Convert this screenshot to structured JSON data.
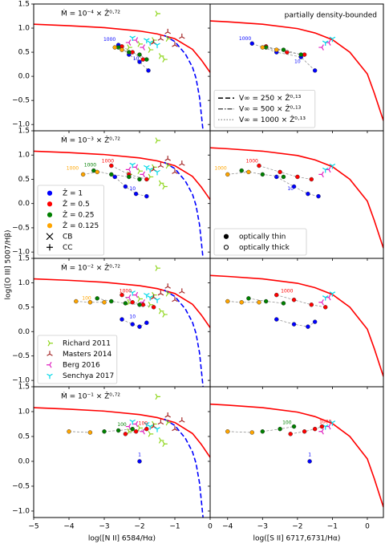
{
  "figure": {
    "ylabel": "log([O III] 5007/Hβ)"
  },
  "curves": {
    "nii": [
      {
        "color": "#ff0000",
        "dash": "none",
        "x": [
          -5,
          -4,
          -3,
          -2,
          -1.5,
          -1,
          -0.5,
          -0.25,
          0
        ],
        "values": [
          1.08,
          1.05,
          1.01,
          0.94,
          0.88,
          0.78,
          0.56,
          0.34,
          0.08
        ]
      },
      {
        "color": "#0000ff",
        "dash": "dashed",
        "x": [
          -1.3,
          -1,
          -0.7,
          -0.5,
          -0.4,
          -0.3,
          -0.2
        ],
        "values": [
          0.85,
          0.72,
          0.46,
          0.19,
          -0.04,
          -0.44,
          -1.14
        ]
      }
    ],
    "sii": [
      {
        "color": "#ff0000",
        "dash": "none",
        "x": [
          -4.5,
          -4,
          -3,
          -2,
          -1.5,
          -1,
          -0.5,
          0,
          0.2,
          0.46
        ],
        "values": [
          1.15,
          1.13,
          1.08,
          0.99,
          0.9,
          0.76,
          0.5,
          0.05,
          -0.35,
          -0.92
        ]
      }
    ]
  },
  "observations": {
    "nii": [
      {
        "color": "#8fd61c",
        "marker": "tri_right",
        "x": [
          -1.5,
          -2.0,
          -1.4,
          -1.7,
          -1.2,
          -1.6,
          -2.3,
          -1.3
        ],
        "values": [
          1.3,
          0.67,
          0.42,
          0.55,
          0.78,
          0.75,
          0.6,
          0.35
        ]
      },
      {
        "color": "#a52a2a",
        "marker": "tri_up",
        "x": [
          -1.2,
          -0.8,
          -1.4,
          -1.0,
          -1.6
        ],
        "values": [
          0.92,
          0.82,
          0.78,
          0.65,
          0.7
        ]
      },
      {
        "color": "#e020c0",
        "marker": "tri_left",
        "x": [
          -2.1,
          -1.9,
          -2.3
        ],
        "values": [
          0.75,
          0.6,
          0.7
        ]
      },
      {
        "color": "#00d8e8",
        "marker": "tri_down",
        "x": [
          -1.8,
          -1.7,
          -2.2,
          -1.5
        ],
        "values": [
          0.75,
          0.7,
          0.8,
          0.65
        ]
      }
    ],
    "sii": [
      {
        "color": "#e020c0",
        "marker": "tri_left",
        "x": [
          -1.1,
          -1.3
        ],
        "values": [
          0.7,
          0.6
        ]
      },
      {
        "color": "#00d8e8",
        "marker": "tri_down",
        "x": [
          -1.0,
          -1.2
        ],
        "values": [
          0.78,
          0.7
        ]
      }
    ]
  },
  "chart_data": [
    {
      "type": "scatter",
      "title": "Ṁ = 10⁻⁴ × Ẑ⁰·⁷²",
      "xlim": [
        -5,
        0
      ],
      "ylim": [
        -1.13,
        1.5
      ],
      "xticks": [
        -5,
        -4,
        -3,
        -2,
        -1,
        0
      ],
      "yticks": [
        1.5,
        {
          "value": 1,
          "label": "1.0"
        },
        0.5,
        {
          "value": 0,
          "label": "0.0"
        },
        {
          "value": -0.5,
          "label": "−0.5"
        },
        {
          "value": -1,
          "label": "−1.0"
        }
      ],
      "series": [
        {
          "color": "#0000ff",
          "x": [
            -2.6,
            -2.3,
            -2.0,
            -1.75
          ],
          "values": [
            0.65,
            0.45,
            0.3,
            0.12
          ]
        },
        {
          "color": "#ff0000",
          "x": [
            -2.5,
            -2.2,
            -1.9
          ],
          "values": [
            0.62,
            0.5,
            0.35
          ]
        },
        {
          "color": "#008000",
          "x": [
            -2.6,
            -2.3,
            -2.0,
            -1.8
          ],
          "values": [
            0.6,
            0.5,
            0.45,
            0.35
          ]
        },
        {
          "color": "#ffa500",
          "x": [
            -2.7,
            -2.5
          ],
          "values": [
            0.6,
            0.55
          ]
        }
      ],
      "point_labels": [
        {
          "text": "1000",
          "x": -2.85,
          "y": 0.76,
          "color": "#0000ff"
        },
        {
          "text": "10",
          "x": -2.1,
          "y": 0.36,
          "color": "#0000ff"
        }
      ]
    },
    {
      "type": "scatter",
      "annotation": "partially density-bounded",
      "xlim": [
        -4.5,
        0.46
      ],
      "ylim": [
        -1.13,
        1.5
      ],
      "xticks": [
        -4,
        -3,
        -2,
        -1,
        0
      ],
      "yticks": [
        1.5,
        1,
        0.5,
        0,
        -0.5,
        -1
      ],
      "series": [
        {
          "color": "#0000ff",
          "x": [
            -3.3,
            -2.6,
            -1.9,
            -1.5
          ],
          "values": [
            0.68,
            0.5,
            0.4,
            0.12
          ]
        },
        {
          "color": "#ff0000",
          "x": [
            -2.9,
            -2.3,
            -1.8
          ],
          "values": [
            0.62,
            0.5,
            0.45
          ]
        },
        {
          "color": "#008000",
          "x": [
            -2.9,
            -2.4,
            -1.9
          ],
          "values": [
            0.6,
            0.55,
            0.45
          ]
        },
        {
          "color": "#ffa500",
          "x": [
            -3.0,
            -2.6
          ],
          "values": [
            0.6,
            0.55
          ]
        }
      ],
      "point_labels": [
        {
          "text": "1000",
          "x": -3.5,
          "y": 0.78,
          "color": "#0000ff"
        },
        {
          "text": "10",
          "x": -2.0,
          "y": 0.3,
          "color": "#0000ff"
        }
      ],
      "legend": "lower left",
      "legend_entries": [
        {
          "label": "V∞ = 250 × Ẑ⁰·¹³",
          "linestyle": "dashed",
          "color": "#000000"
        },
        {
          "label": "V∞ = 500 × Ẑ⁰·¹³",
          "linestyle": "dashdot",
          "color": "#555555"
        },
        {
          "label": "V∞ = 1000 × Ẑ⁰·¹³",
          "linestyle": "dotted",
          "color": "#999999"
        }
      ]
    },
    {
      "type": "scatter",
      "title": "Ṁ = 10⁻³ × Ẑ⁰·⁷²",
      "xlim": [
        -5,
        0
      ],
      "ylim": [
        -1.13,
        1.5
      ],
      "xticks": [
        -5,
        -4,
        -3,
        -2,
        -1,
        0
      ],
      "yticks": [
        1.5,
        {
          "value": 1,
          "label": "1.0"
        },
        0.5,
        {
          "value": 0,
          "label": "0.0"
        },
        {
          "value": -0.5,
          "label": "−0.5"
        },
        {
          "value": -1,
          "label": "−1.0"
        }
      ],
      "series": [
        {
          "color": "#0000ff",
          "x": [
            -2.7,
            -2.4,
            -2.1,
            -1.8
          ],
          "values": [
            0.55,
            0.35,
            0.2,
            0.15
          ]
        },
        {
          "color": "#ff0000",
          "x": [
            -2.8,
            -2.3,
            -1.8
          ],
          "values": [
            0.78,
            0.6,
            0.5
          ]
        },
        {
          "color": "#008000",
          "x": [
            -3.3,
            -2.8,
            -2.3,
            -2.0
          ],
          "values": [
            0.68,
            0.6,
            0.55,
            0.5
          ]
        },
        {
          "color": "#ffa500",
          "x": [
            -3.6,
            -3.2
          ],
          "values": [
            0.6,
            0.65
          ]
        }
      ],
      "point_labels": [
        {
          "text": "1000",
          "x": -2.9,
          "y": 0.87,
          "color": "#ff0000"
        },
        {
          "text": "1000",
          "x": -3.9,
          "y": 0.72,
          "color": "#ffa500"
        },
        {
          "text": "1000",
          "x": -3.4,
          "y": 0.79,
          "color": "#008000"
        },
        {
          "text": "10",
          "x": -2.2,
          "y": 0.3,
          "color": "#0000ff"
        }
      ],
      "legend": "lower left",
      "legend_entries": [
        {
          "label": "Ẑ = 1",
          "marker": "dot",
          "color": "#0000ff"
        },
        {
          "label": "Ẑ = 0.5",
          "marker": "dot",
          "color": "#ff0000"
        },
        {
          "label": "Ẑ = 0.25",
          "marker": "dot",
          "color": "#008000"
        },
        {
          "label": "Ẑ = 0.125",
          "marker": "dot",
          "color": "#ffa500"
        },
        {
          "label": "CB",
          "marker": "x",
          "color": "#000000"
        },
        {
          "label": "CC",
          "marker": "plus",
          "color": "#000000"
        }
      ]
    },
    {
      "type": "scatter",
      "xlim": [
        -4.5,
        0.46
      ],
      "ylim": [
        -1.13,
        1.5
      ],
      "xticks": [
        -4,
        -3,
        -2,
        -1,
        0
      ],
      "yticks": [
        1.5,
        1,
        0.5,
        0,
        -0.5,
        -1
      ],
      "series": [
        {
          "color": "#0000ff",
          "x": [
            -2.6,
            -2.1,
            -1.7,
            -1.4
          ],
          "values": [
            0.55,
            0.35,
            0.2,
            0.15
          ]
        },
        {
          "color": "#ff0000",
          "x": [
            -3.1,
            -2.5,
            -2.0,
            -1.6
          ],
          "values": [
            0.78,
            0.65,
            0.55,
            0.5
          ]
        },
        {
          "color": "#008000",
          "x": [
            -3.6,
            -3.0,
            -2.4
          ],
          "values": [
            0.68,
            0.6,
            0.55
          ]
        },
        {
          "color": "#ffa500",
          "x": [
            -4.0,
            -3.4
          ],
          "values": [
            0.6,
            0.65
          ]
        }
      ],
      "point_labels": [
        {
          "text": "1000",
          "x": -4.2,
          "y": 0.72,
          "color": "#ffa500"
        },
        {
          "text": "1000",
          "x": -3.3,
          "y": 0.87,
          "color": "#ff0000"
        },
        {
          "text": "10",
          "x": -2.2,
          "y": 0.3,
          "color": "#0000ff"
        }
      ],
      "legend": "lower left",
      "legend_entries": [
        {
          "label": "optically thin",
          "marker": "dot",
          "color": "#000000"
        },
        {
          "label": "optically thick",
          "marker": "circle",
          "color": "#000000"
        }
      ]
    },
    {
      "type": "scatter",
      "title": "Ṁ = 10⁻² × Ẑ⁰·⁷²",
      "xlim": [
        -5,
        0
      ],
      "ylim": [
        -1.13,
        1.5
      ],
      "xticks": [
        -5,
        -4,
        -3,
        -2,
        -1,
        0
      ],
      "yticks": [
        1.5,
        {
          "value": 1,
          "label": "1.0"
        },
        0.5,
        {
          "value": 0,
          "label": "0.0"
        },
        {
          "value": -0.5,
          "label": "−0.5"
        },
        {
          "value": -1,
          "label": "−1.0"
        }
      ],
      "series": [
        {
          "color": "#0000ff",
          "x": [
            -2.5,
            -2.2,
            -2.0,
            -1.8
          ],
          "values": [
            0.25,
            0.15,
            0.1,
            0.18
          ]
        },
        {
          "color": "#ff0000",
          "x": [
            -2.5,
            -2.2,
            -1.9,
            -1.6
          ],
          "values": [
            0.75,
            0.6,
            0.55,
            0.5
          ]
        },
        {
          "color": "#008000",
          "x": [
            -3.2,
            -2.8,
            -2.4,
            -2.0
          ],
          "values": [
            0.68,
            0.62,
            0.58,
            0.55
          ]
        },
        {
          "color": "#ffa500",
          "x": [
            -3.8,
            -3.4,
            -3.0
          ],
          "values": [
            0.62,
            0.6,
            0.6
          ]
        }
      ],
      "point_labels": [
        {
          "text": "1000",
          "x": -2.4,
          "y": 0.83,
          "color": "#ff0000"
        },
        {
          "text": "100",
          "x": -3.5,
          "y": 0.68,
          "color": "#ffa500"
        },
        {
          "text": "10",
          "x": -2.2,
          "y": 0.3,
          "color": "#0000ff"
        }
      ],
      "legend": "lower left",
      "legend_entries": [
        {
          "label": "Richard 2011",
          "marker": "tri_right",
          "color": "#8fd61c"
        },
        {
          "label": "Masters 2014",
          "marker": "tri_up",
          "color": "#a52a2a"
        },
        {
          "label": "Berg 2016",
          "marker": "tri_left",
          "color": "#e020c0"
        },
        {
          "label": "Senchya 2017",
          "marker": "tri_down",
          "color": "#00d8e8"
        }
      ]
    },
    {
      "type": "scatter",
      "xlim": [
        -4.5,
        0.46
      ],
      "ylim": [
        -1.13,
        1.5
      ],
      "xticks": [
        -4,
        -3,
        -2,
        -1,
        0
      ],
      "yticks": [
        1.5,
        1,
        0.5,
        0,
        -0.5,
        -1
      ],
      "series": [
        {
          "color": "#0000ff",
          "x": [
            -2.6,
            -2.1,
            -1.7,
            -1.5
          ],
          "values": [
            0.25,
            0.15,
            0.1,
            0.2
          ]
        },
        {
          "color": "#ff0000",
          "x": [
            -2.6,
            -2.1,
            -1.6,
            -1.2
          ],
          "values": [
            0.75,
            0.65,
            0.55,
            0.5
          ]
        },
        {
          "color": "#008000",
          "x": [
            -3.4,
            -2.9,
            -2.4
          ],
          "values": [
            0.68,
            0.62,
            0.58
          ]
        },
        {
          "color": "#ffa500",
          "x": [
            -4.0,
            -3.6,
            -3.1
          ],
          "values": [
            0.62,
            0.6,
            0.6
          ]
        }
      ],
      "point_labels": [
        {
          "text": "1000",
          "x": -2.3,
          "y": 0.83,
          "color": "#ff0000"
        }
      ]
    },
    {
      "type": "scatter",
      "title": "Ṁ = 10⁻¹ × Ẑ⁰·⁷²",
      "xlabel": "log([N II] 6584/Hα)",
      "xlim": [
        -5,
        0
      ],
      "ylim": [
        -1.13,
        1.5
      ],
      "xticks": [
        {
          "value": -5,
          "label": "−5"
        },
        {
          "value": -4,
          "label": "−4"
        },
        {
          "value": -3,
          "label": "−3"
        },
        {
          "value": -2,
          "label": "−2"
        },
        {
          "value": -1,
          "label": "−1"
        },
        0
      ],
      "yticks": [
        1.5,
        {
          "value": 1,
          "label": "1.0"
        },
        0.5,
        {
          "value": 0,
          "label": "0.0"
        },
        {
          "value": -0.5,
          "label": "−0.5"
        },
        {
          "value": -1,
          "label": "−1.0"
        }
      ],
      "series": [
        {
          "color": "#0000ff",
          "x": [
            -2.0
          ],
          "values": [
            0.0
          ]
        },
        {
          "color": "#ff0000",
          "x": [
            -2.4,
            -2.1,
            -1.8
          ],
          "values": [
            0.55,
            0.6,
            0.65
          ]
        },
        {
          "color": "#008000",
          "x": [
            -3.0,
            -2.6,
            -2.2
          ],
          "values": [
            0.6,
            0.62,
            0.65
          ]
        },
        {
          "color": "#ffa500",
          "x": [
            -4.0,
            -3.4
          ],
          "values": [
            0.6,
            0.58
          ]
        }
      ],
      "point_labels": [
        {
          "text": "1",
          "x": -2.0,
          "y": 0.13,
          "color": "#0000ff"
        },
        {
          "text": "100",
          "x": -2.5,
          "y": 0.73,
          "color": "#008000"
        },
        {
          "text": "100",
          "x": -1.9,
          "y": 0.76,
          "color": "#ff0000"
        }
      ]
    },
    {
      "type": "scatter",
      "xlabel": "log([S II] 6717,6731/Hα)",
      "xlim": [
        -4.5,
        0.46
      ],
      "ylim": [
        -1.13,
        1.5
      ],
      "xticks": [
        {
          "value": -4,
          "label": "−4"
        },
        {
          "value": -3,
          "label": "−3"
        },
        {
          "value": -2,
          "label": "−2"
        },
        {
          "value": -1,
          "label": "−1"
        },
        0
      ],
      "yticks": [
        1.5,
        1,
        0.5,
        0,
        -0.5,
        -1
      ],
      "series": [
        {
          "color": "#0000ff",
          "x": [
            -1.65
          ],
          "values": [
            0.0
          ]
        },
        {
          "color": "#ff0000",
          "x": [
            -2.2,
            -1.8,
            -1.5,
            -1.3
          ],
          "values": [
            0.55,
            0.6,
            0.65,
            0.7
          ]
        },
        {
          "color": "#008000",
          "x": [
            -3.0,
            -2.5,
            -2.1
          ],
          "values": [
            0.6,
            0.65,
            0.7
          ]
        },
        {
          "color": "#ffa500",
          "x": [
            -4.0,
            -3.3
          ],
          "values": [
            0.6,
            0.58
          ]
        }
      ],
      "point_labels": [
        {
          "text": "1",
          "x": -1.65,
          "y": 0.13,
          "color": "#0000ff"
        },
        {
          "text": "1000",
          "x": -1.2,
          "y": 0.79,
          "color": "#ff0000"
        },
        {
          "text": "100",
          "x": -2.3,
          "y": 0.77,
          "color": "#008000"
        }
      ]
    }
  ]
}
